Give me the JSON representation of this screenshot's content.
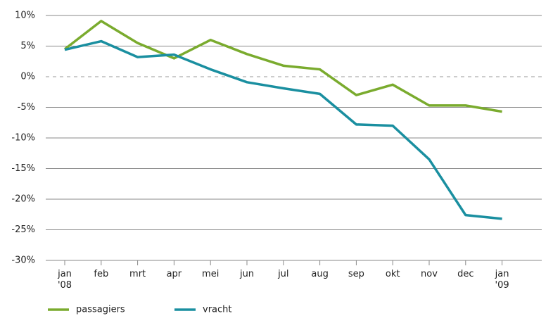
{
  "chart_data": {
    "type": "line",
    "categories": [
      "jan '08",
      "feb",
      "mrt",
      "apr",
      "mei",
      "jun",
      "jul",
      "aug",
      "sep",
      "okt",
      "nov",
      "dec",
      "jan '09"
    ],
    "series": [
      {
        "name": "passagiers",
        "color": "#7aab2e",
        "values": [
          4.5,
          9.1,
          5.5,
          3,
          6,
          3.7,
          1.8,
          1.2,
          -3,
          -1.3,
          -4.7,
          -4.7,
          -5.7
        ]
      },
      {
        "name": "vracht",
        "color": "#1a8fa0",
        "values": [
          4.4,
          5.8,
          3.2,
          3.6,
          1.2,
          -0.9,
          -1.9,
          -2.8,
          -7.8,
          -8,
          -13.5,
          -22.6,
          -23.2
        ]
      }
    ],
    "ylim": [
      -30,
      10
    ],
    "yticks": [
      {
        "value": -30,
        "label": "-30%"
      },
      {
        "value": -25,
        "label": "-25%"
      },
      {
        "value": -20,
        "label": "-20%"
      },
      {
        "value": -15,
        "label": "-15%"
      },
      {
        "value": -10,
        "label": "-10%"
      },
      {
        "value": -5,
        "label": "-5%"
      },
      {
        "value": 0,
        "label": "0%"
      },
      {
        "value": 5,
        "label": "5%"
      },
      {
        "value": 10,
        "label": "10%"
      }
    ],
    "grid": true
  }
}
